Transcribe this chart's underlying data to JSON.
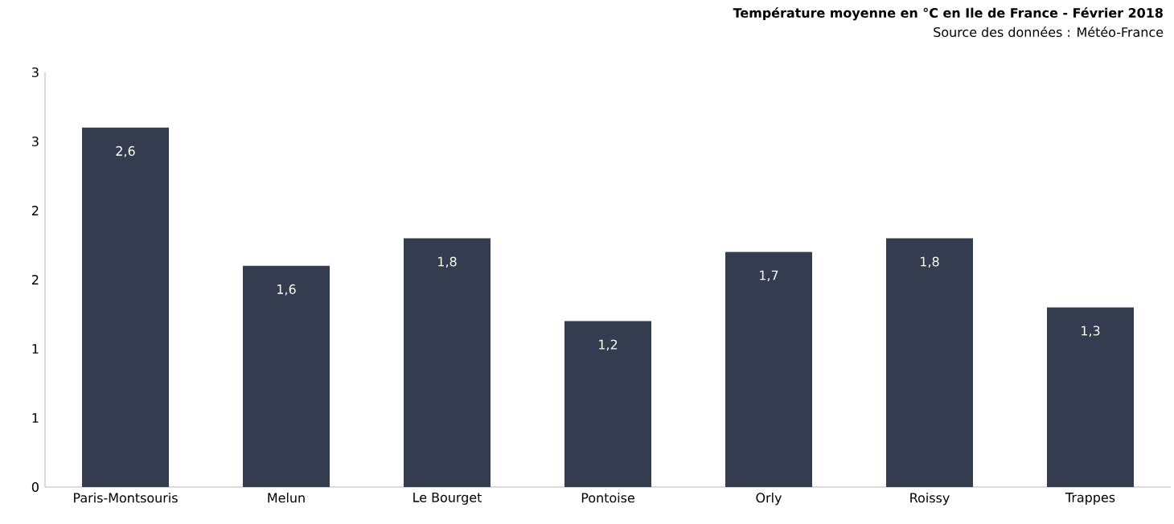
{
  "chart_data": {
    "type": "bar",
    "title": "Température moyenne en °C en Ile de France - Février 2018",
    "subtitle": "Source des données : Météo-France",
    "categories": [
      "Paris-Montsouris",
      "Melun",
      "Le Bourget",
      "Pontoise",
      "Orly",
      "Roissy",
      "Trappes"
    ],
    "values": [
      2.6,
      1.6,
      1.8,
      1.2,
      1.7,
      1.8,
      1.3
    ],
    "value_labels": [
      "2,6",
      "1,6",
      "1,8",
      "1,2",
      "1,7",
      "1,8",
      "1,3"
    ],
    "color": "#333d4f",
    "ylim": [
      0,
      3
    ],
    "yticks": [
      0,
      {
        "value": 0.5,
        "label": "1"
      },
      1,
      {
        "value": 1.5,
        "label": "2"
      },
      2,
      {
        "value": 2.5,
        "label": "3"
      },
      3
    ]
  }
}
